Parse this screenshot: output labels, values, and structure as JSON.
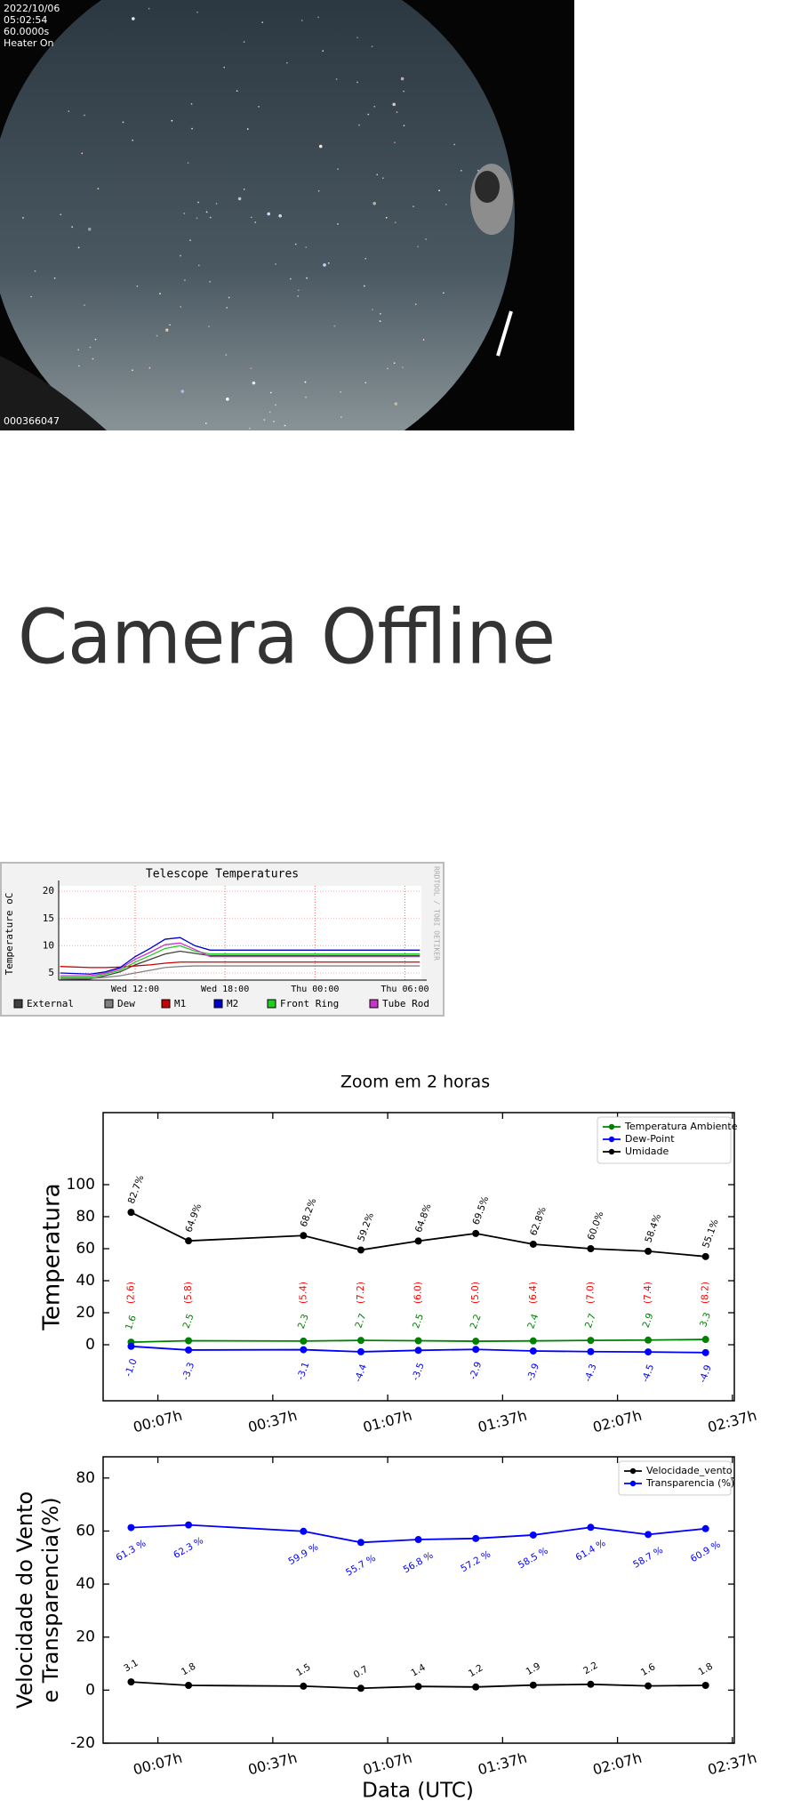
{
  "camera": {
    "date": "2022/10/06",
    "time": "05:02:54",
    "exposure": "60.0000s",
    "heater": "Heater On",
    "frame": "000366047"
  },
  "offline_text": "Camera Offline",
  "chart_data": [
    {
      "type": "line",
      "title": "Telescope Temperatures",
      "y_label": "Temperature oC",
      "side_text": "RRDTOOL / TOBI OETIKER",
      "x": [
        7,
        9,
        10,
        11,
        12,
        13,
        14,
        15,
        16,
        17,
        31
      ],
      "xlim": [
        6.9,
        31.1
      ],
      "xticks": [
        {
          "value": 12,
          "label": "Wed 12:00"
        },
        {
          "value": 18,
          "label": "Wed 18:00"
        },
        {
          "value": 24,
          "label": "Thu 00:00"
        },
        {
          "value": 30,
          "label": "Thu 06:00"
        }
      ],
      "ylim": [
        3.7,
        21
      ],
      "yticks": [
        5,
        10,
        15,
        20
      ],
      "grid": true,
      "series": [
        {
          "name": "External",
          "color": "#404040",
          "values": [
            3.8,
            3.9,
            4.5,
            5.2,
            6.5,
            7.5,
            8.5,
            9,
            8.6,
            8.2,
            8.2
          ]
        },
        {
          "name": "Dew",
          "color": "#808080",
          "values": [
            4,
            4,
            4.2,
            4.5,
            5,
            5.5,
            6,
            6.2,
            6.3,
            6.3,
            6.3
          ]
        },
        {
          "name": "M1",
          "color": "#cc0000",
          "values": [
            6.2,
            6,
            6,
            6.1,
            6.3,
            6.5,
            6.8,
            7,
            7,
            7,
            7
          ]
        },
        {
          "name": "M2",
          "color": "#0000cc",
          "values": [
            5,
            4.8,
            5.2,
            6,
            8,
            9.5,
            11.2,
            11.5,
            10,
            9.2,
            9.2
          ]
        },
        {
          "name": "Front Ring",
          "color": "#22cc22",
          "values": [
            4.2,
            4.2,
            4.8,
            5.5,
            7,
            8.2,
            9.5,
            10,
            9,
            8.5,
            8.5
          ]
        },
        {
          "name": "Tube Rod",
          "color": "#cc33cc",
          "values": [
            4.5,
            4.5,
            5,
            5.8,
            7.5,
            8.8,
            10.2,
            10.5,
            9.3,
            8,
            8
          ]
        }
      ]
    },
    {
      "type": "line",
      "title": "Zoom em 2 horas",
      "y_label": "Temperatura",
      "x": [
        0,
        15,
        45,
        60,
        75,
        90,
        105,
        120,
        135,
        150
      ],
      "xlim": [
        -7.3,
        157.5
      ],
      "xticks": [
        {
          "value": 7,
          "label": "00:07h"
        },
        {
          "value": 37,
          "label": "00:37h"
        },
        {
          "value": 67,
          "label": "01:07h"
        },
        {
          "value": 97,
          "label": "01:37h"
        },
        {
          "value": 127,
          "label": "02:07h"
        },
        {
          "value": 157,
          "label": "02:37h"
        }
      ],
      "ylim": [
        -35,
        145
      ],
      "yticks": [
        0,
        20,
        40,
        60,
        80,
        100
      ],
      "legend": "upper right",
      "spread_color": "#ff0000",
      "spread_labels": [
        "(2.6)",
        "(5.8)",
        "(5.4)",
        "(7.2)",
        "(6.0)",
        "(5.0)",
        "(6.4)",
        "(7.0)",
        "(7.4)",
        "(8.2)"
      ],
      "series": [
        {
          "name": "Temperatura Ambiente",
          "color": "#008000",
          "values": [
            1.6,
            2.5,
            2.3,
            2.7,
            2.5,
            2.2,
            2.4,
            2.7,
            2.9,
            3.3
          ]
        },
        {
          "name": "Dew-Point",
          "color": "#0000ff",
          "values": [
            -1.0,
            -3.3,
            -3.1,
            -4.4,
            -3.5,
            -2.9,
            -3.9,
            -4.3,
            -4.5,
            -4.9
          ],
          "value_labels": [
            "-1.0",
            "-3.3",
            "-3.1",
            "-4.4",
            "-3.5",
            "-2.9",
            "-3.9",
            "-4.3",
            "-4.5",
            "-4.9"
          ]
        },
        {
          "name": "Umidade",
          "color": "#000000",
          "values": [
            82.7,
            64.9,
            68.2,
            59.2,
            64.8,
            69.5,
            62.8,
            60.0,
            58.4,
            55.1
          ],
          "value_labels": [
            "82.7%",
            "64.9%",
            "68.2%",
            "59.2%",
            "64.8%",
            "69.5%",
            "62.8%",
            "60.0%",
            "58.4%",
            "55.1%"
          ]
        }
      ]
    },
    {
      "type": "line",
      "y_label": [
        "Velocidade do Vento",
        "e Transparencia(%)"
      ],
      "x_label": "Data (UTC)",
      "x": [
        0,
        15,
        45,
        60,
        75,
        90,
        105,
        120,
        135,
        150
      ],
      "xlim": [
        -7.3,
        157.5
      ],
      "xticks": [
        {
          "value": 7,
          "label": "00:07h"
        },
        {
          "value": 37,
          "label": "00:37h"
        },
        {
          "value": 67,
          "label": "01:07h"
        },
        {
          "value": 97,
          "label": "01:37h"
        },
        {
          "value": 127,
          "label": "02:07h"
        },
        {
          "value": 157,
          "label": "02:37h"
        }
      ],
      "ylim": [
        -20,
        88
      ],
      "yticks": [
        -20,
        0,
        20,
        40,
        60,
        80
      ],
      "legend": "upper right",
      "series": [
        {
          "name": "Velocidade_vento",
          "color": "#000000",
          "values": [
            3.1,
            1.8,
            1.5,
            0.7,
            1.4,
            1.2,
            1.9,
            2.2,
            1.6,
            1.8
          ]
        },
        {
          "name": "Transparencia (%)",
          "color": "#0000ff",
          "values": [
            61.3,
            62.3,
            59.9,
            55.7,
            56.8,
            57.2,
            58.5,
            61.4,
            58.7,
            60.9
          ],
          "value_labels": [
            "61.3 %",
            "62.3 %",
            "59.9 %",
            "55.7 %",
            "56.8 %",
            "57.2 %",
            "58.5 %",
            "61.4 %",
            "58.7 %",
            "60.9 %"
          ]
        }
      ]
    }
  ]
}
